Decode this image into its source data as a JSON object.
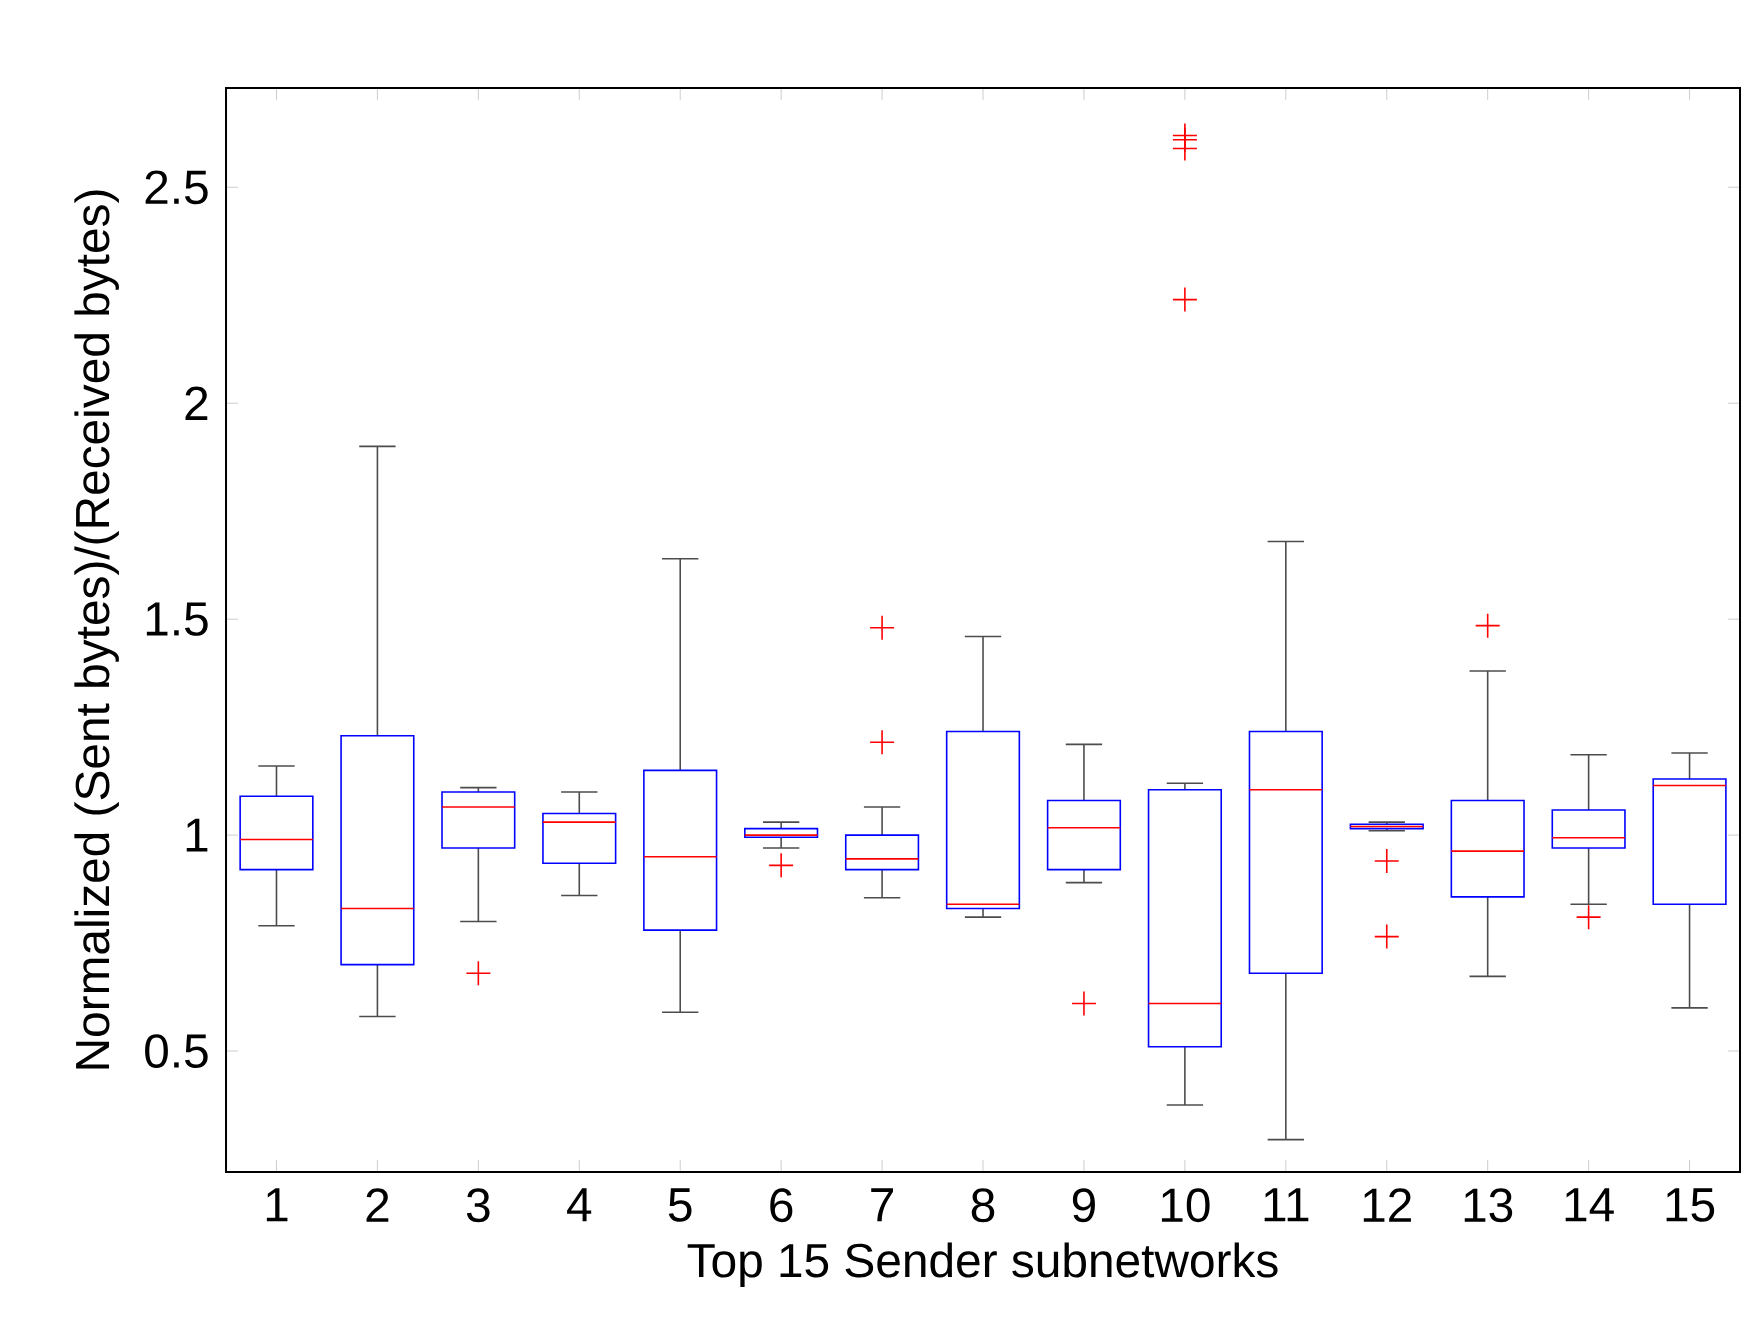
{
  "chart_data": {
    "type": "box",
    "xlabel": "Top 15 Sender subnetworks",
    "ylabel": "Normalized (Sent bytes)/(Received bytes)",
    "categories": [
      "1",
      "2",
      "3",
      "4",
      "5",
      "6",
      "7",
      "8",
      "9",
      "10",
      "11",
      "12",
      "13",
      "14",
      "15"
    ],
    "boxes": [
      {
        "low": 0.79,
        "q1": 0.92,
        "median": 0.99,
        "q3": 1.09,
        "high": 1.16
      },
      {
        "low": 0.58,
        "q1": 0.7,
        "median": 0.83,
        "q3": 1.23,
        "high": 1.9
      },
      {
        "low": 0.8,
        "q1": 0.97,
        "median": 1.065,
        "q3": 1.1,
        "high": 1.11,
        "outliers": [
          0.68
        ]
      },
      {
        "low": 0.86,
        "q1": 0.935,
        "median": 1.03,
        "q3": 1.05,
        "high": 1.1
      },
      {
        "low": 0.59,
        "q1": 0.78,
        "median": 0.95,
        "q3": 1.15,
        "high": 1.64
      },
      {
        "low": 0.97,
        "q1": 0.995,
        "median": 1.0,
        "q3": 1.015,
        "high": 1.03,
        "outliers": [
          0.93
        ]
      },
      {
        "low": 0.855,
        "q1": 0.92,
        "median": 0.945,
        "q3": 1.0,
        "high": 1.065,
        "outliers": [
          1.215,
          1.48
        ]
      },
      {
        "low": 0.81,
        "q1": 0.83,
        "median": 0.84,
        "q3": 1.24,
        "high": 1.46
      },
      {
        "low": 0.89,
        "q1": 0.92,
        "median": 1.017,
        "q3": 1.08,
        "high": 1.21,
        "outliers": [
          0.61
        ]
      },
      {
        "low": 0.375,
        "q1": 0.51,
        "median": 0.61,
        "q3": 1.105,
        "high": 1.12,
        "outliers": [
          2.24,
          2.59,
          2.61,
          2.62
        ]
      },
      {
        "low": 0.295,
        "q1": 0.68,
        "median": 1.105,
        "q3": 1.24,
        "high": 1.68
      },
      {
        "low": 1.01,
        "q1": 1.015,
        "median": 1.02,
        "q3": 1.025,
        "high": 1.03,
        "outliers": [
          0.765,
          0.94
        ]
      },
      {
        "low": 0.673,
        "q1": 0.857,
        "median": 0.963,
        "q3": 1.08,
        "high": 1.38,
        "outliers": [
          1.485
        ]
      },
      {
        "low": 0.84,
        "q1": 0.97,
        "median": 0.994,
        "q3": 1.058,
        "high": 1.186,
        "outliers": [
          0.81
        ]
      },
      {
        "low": 0.6,
        "q1": 0.84,
        "median": 1.115,
        "q3": 1.13,
        "high": 1.19
      }
    ],
    "marker": "cross",
    "ylim": [
      0.22,
      2.73
    ],
    "yticks": [
      0.5,
      1,
      1.5,
      2,
      2.5
    ]
  }
}
